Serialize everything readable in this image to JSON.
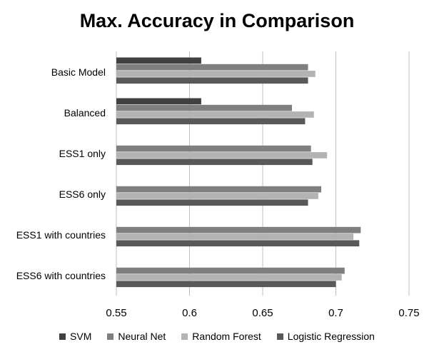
{
  "chart_data": {
    "type": "bar",
    "orientation": "horizontal",
    "title": "Max. Accuracy in Comparison",
    "xlabel": "",
    "ylabel": "",
    "xlim": [
      0.55,
      0.75
    ],
    "xticks": [
      0.55,
      0.6,
      0.65,
      0.7,
      0.75
    ],
    "xtick_labels": [
      "0.55",
      "0.6",
      "0.65",
      "0.7",
      "0.75"
    ],
    "grid": "vertical",
    "legend_position": "bottom",
    "categories": [
      "Basic Model",
      "Balanced",
      "ESS1 only",
      "ESS6 only",
      "ESS1 with countries",
      "ESS6 with countries"
    ],
    "series": [
      {
        "name": "SVM",
        "color": "#404040",
        "values": [
          0.608,
          0.608,
          null,
          null,
          null,
          null
        ]
      },
      {
        "name": "Neural Net",
        "color": "#7f7f7f",
        "values": [
          0.681,
          0.67,
          0.683,
          0.69,
          0.717,
          0.706
        ]
      },
      {
        "name": "Random Forest",
        "color": "#b3b3b3",
        "values": [
          0.686,
          0.685,
          0.694,
          0.688,
          0.712,
          0.704
        ]
      },
      {
        "name": "Logistic Regression",
        "color": "#595959",
        "values": [
          0.681,
          0.679,
          0.684,
          0.681,
          0.716,
          0.7
        ]
      }
    ]
  }
}
